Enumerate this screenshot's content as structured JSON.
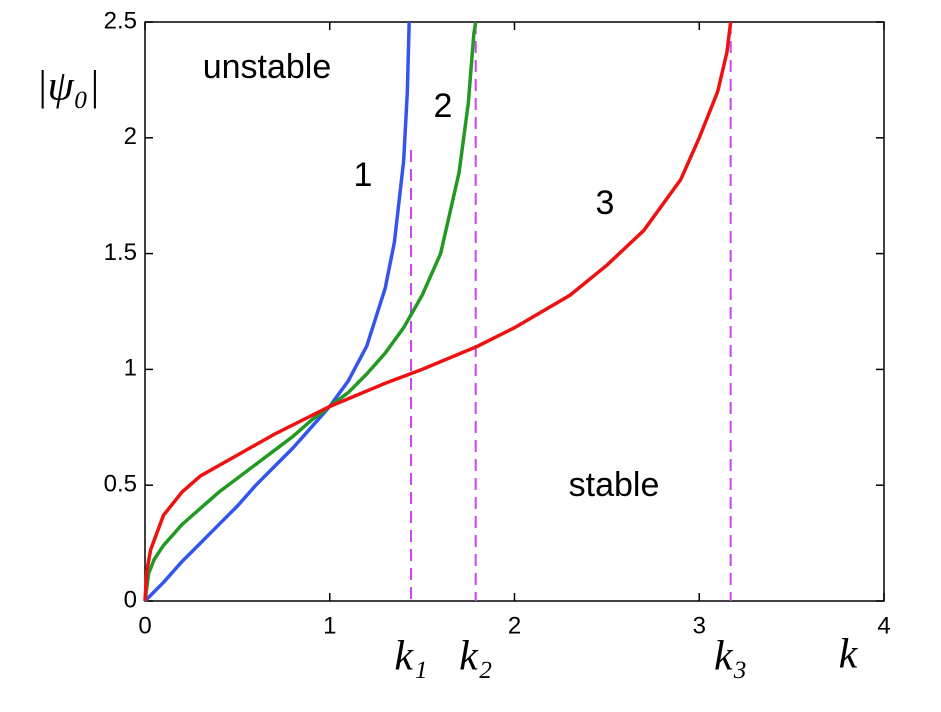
{
  "chart_data": {
    "type": "line",
    "x_label": "k",
    "y_label": "|ψ₀|",
    "xlim": [
      0,
      4
    ],
    "xticks": [
      0,
      1,
      2,
      3,
      4
    ],
    "ylim": [
      0,
      2.5
    ],
    "yticks": [
      0,
      0.5,
      1,
      1.5,
      2,
      2.5
    ],
    "annotations": [
      "unstable",
      "stable"
    ],
    "series": [
      {
        "name": "1",
        "color": "#3355ee",
        "x": [
          0,
          0.1,
          0.2,
          0.3,
          0.4,
          0.5,
          0.6,
          0.7,
          0.8,
          0.9,
          1.0,
          1.1,
          1.2,
          1.3,
          1.35,
          1.4,
          1.42,
          1.43
        ],
        "values": [
          0,
          0.08,
          0.17,
          0.25,
          0.33,
          0.41,
          0.5,
          0.58,
          0.66,
          0.75,
          0.84,
          0.95,
          1.1,
          1.35,
          1.55,
          1.9,
          2.2,
          2.5
        ]
      },
      {
        "name": "2",
        "color": "#229922",
        "x": [
          0,
          0.02,
          0.05,
          0.1,
          0.2,
          0.3,
          0.4,
          0.5,
          0.6,
          0.7,
          0.8,
          0.9,
          1.0,
          1.1,
          1.2,
          1.3,
          1.4,
          1.5,
          1.6,
          1.7,
          1.75,
          1.78,
          1.79
        ],
        "values": [
          0,
          0.12,
          0.18,
          0.24,
          0.33,
          0.4,
          0.47,
          0.53,
          0.59,
          0.65,
          0.71,
          0.78,
          0.84,
          0.9,
          0.98,
          1.07,
          1.18,
          1.32,
          1.5,
          1.85,
          2.15,
          2.45,
          2.5
        ]
      },
      {
        "name": "3",
        "color": "#ee1111",
        "x": [
          0,
          0.01,
          0.03,
          0.1,
          0.2,
          0.3,
          0.5,
          0.7,
          1,
          1.3,
          1.5,
          1.8,
          2,
          2.3,
          2.5,
          2.7,
          2.9,
          3.0,
          3.1,
          3.15,
          3.17
        ],
        "values": [
          0,
          0.13,
          0.22,
          0.37,
          0.47,
          0.54,
          0.63,
          0.72,
          0.84,
          0.94,
          1.0,
          1.1,
          1.18,
          1.32,
          1.45,
          1.6,
          1.82,
          2.0,
          2.2,
          2.37,
          2.5
        ]
      }
    ],
    "vlines": [
      {
        "x": 1.44,
        "label": "k₁",
        "color": "#cc44ee"
      },
      {
        "x": 1.79,
        "label": "k₂",
        "color": "#cc44ee"
      },
      {
        "x": 3.17,
        "label": "k₃",
        "color": "#cc44ee"
      }
    ]
  }
}
